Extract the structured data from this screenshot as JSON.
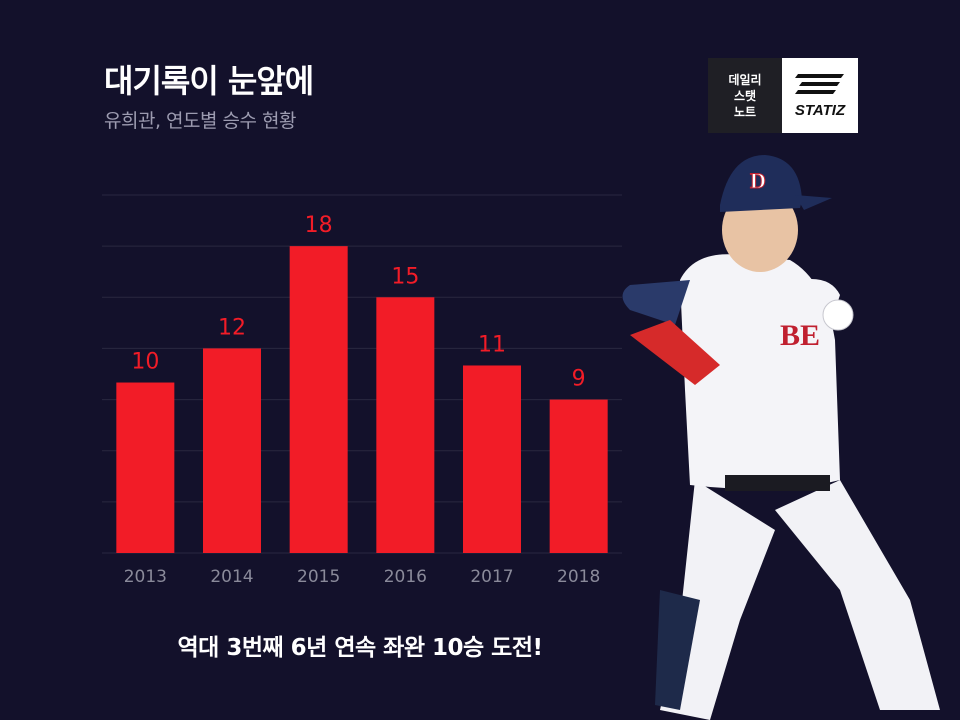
{
  "header": {
    "title": "대기록이 눈앞에",
    "subtitle": "유희관, 연도별 승수 현황"
  },
  "badge": {
    "lines": [
      "데일리",
      "스탯",
      "노트"
    ],
    "brand": "STATIZ"
  },
  "player_image": {
    "cap_letter": "D",
    "jersey_text": "BE"
  },
  "footer": {
    "caption": "역대 3번째 6년 연속 좌완 10승 도전!"
  },
  "colors": {
    "background": "#13112b",
    "bar": "#f21c27",
    "value_label": "#f21c27",
    "tick_label": "#8a8a9a",
    "grid": "#2a2840"
  },
  "chart_data": {
    "type": "bar",
    "categories": [
      "2013",
      "2014",
      "2015",
      "2016",
      "2017",
      "2018"
    ],
    "values": [
      10,
      12,
      18,
      15,
      11,
      9
    ],
    "ylim": [
      0,
      21
    ],
    "grid": true,
    "data_labels": true,
    "legend": "none"
  }
}
